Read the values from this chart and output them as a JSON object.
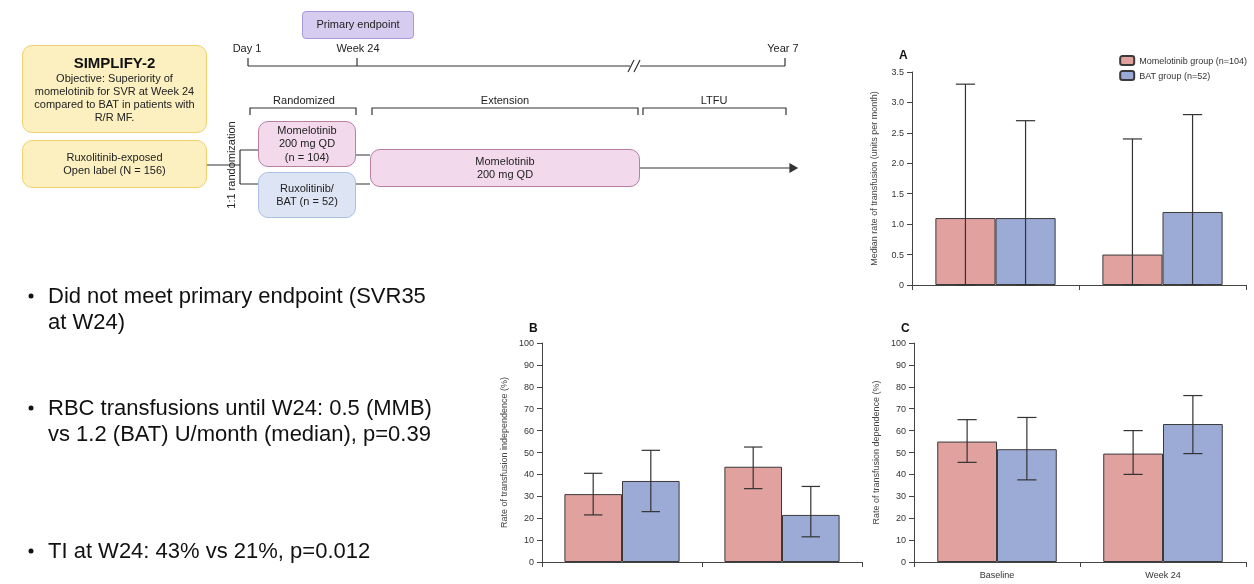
{
  "chart_data": [
    {
      "type": "other",
      "title": "SIMPLIFY-2",
      "annotations": [
        "Objective: Superiority of momelotinib for SVR at Week 24 compared to BAT in patients with R/R MF.",
        "Ruxolitinib-exposed Open label (N = 156)",
        "Primary endpoint",
        "Day 1",
        "Week 24",
        "Year 7",
        "Randomized",
        "Extension",
        "LTFU",
        "1:1 randomization",
        "Momelotinib 200 mg QD (n = 104)",
        "Ruxolitinib/ BAT (n = 52)",
        "Momelotinib 200 mg QD",
        "Did not meet primary endpoint (SVR35 at W24)",
        "RBC transfusions until W24: 0.5 (MMB) vs 1.2 (BAT) U/month (median), p=0.39",
        "TI at W24: 43% vs 21%, p=0.012"
      ]
    },
    {
      "type": "bar",
      "title": "A",
      "ylabel": "Median rate of transfusion (units per month)",
      "categories": [
        null,
        null
      ],
      "series": [
        {
          "name": "Momelotinib group (n=104)",
          "color": "#e0a19f",
          "values": [
            1.1,
            0.5
          ],
          "errors": [
            [
              0,
              3.3
            ],
            [
              0,
              2.4
            ]
          ]
        },
        {
          "name": "BAT group (n=52)",
          "color": "#9babd6",
          "values": [
            1.1,
            1.2
          ],
          "errors": [
            [
              0,
              2.7
            ],
            [
              0,
              2.8
            ]
          ]
        }
      ],
      "ylim": [
        0,
        3.5
      ],
      "yticks": [
        0,
        0.5,
        {
          "value": 1,
          "label": "1.0"
        },
        1.5,
        {
          "value": 2,
          "label": "2.0"
        },
        2.5,
        {
          "value": 3,
          "label": "3.0"
        },
        3.5
      ],
      "legend": "top right",
      "grid": false
    },
    {
      "type": "bar",
      "title": "B",
      "ylabel": "Rate of transfusion independence (%)",
      "categories": [
        null,
        null
      ],
      "series": [
        {
          "color": "#e0a19f",
          "values": [
            31,
            43.5
          ],
          "errors": [
            [
              21.5,
              40.5
            ],
            [
              33.5,
              52.5
            ]
          ]
        },
        {
          "color": "#9babd6",
          "values": [
            37,
            21.5
          ],
          "errors": [
            [
              23,
              51
            ],
            [
              11.5,
              34.5
            ]
          ]
        }
      ],
      "ylim": [
        0,
        100
      ],
      "yticks": [
        0,
        10,
        20,
        30,
        40,
        50,
        60,
        70,
        80,
        90,
        100
      ],
      "grid": false
    },
    {
      "type": "bar",
      "title": "C",
      "ylabel": "Rate of transfusion dependence (%)",
      "categories": [
        "Baseline",
        "Week 24"
      ],
      "series": [
        {
          "color": "#e0a19f",
          "values": [
            55,
            49.5
          ],
          "errors": [
            [
              45.5,
              65
            ],
            [
              40,
              60
            ]
          ]
        },
        {
          "color": "#9babd6",
          "values": [
            51.5,
            63
          ],
          "errors": [
            [
              37.5,
              66
            ],
            [
              49.5,
              76
            ]
          ]
        }
      ],
      "ylim": [
        0,
        100
      ],
      "yticks": [
        0,
        10,
        20,
        30,
        40,
        50,
        60,
        70,
        80,
        90,
        100
      ],
      "grid": false
    }
  ]
}
